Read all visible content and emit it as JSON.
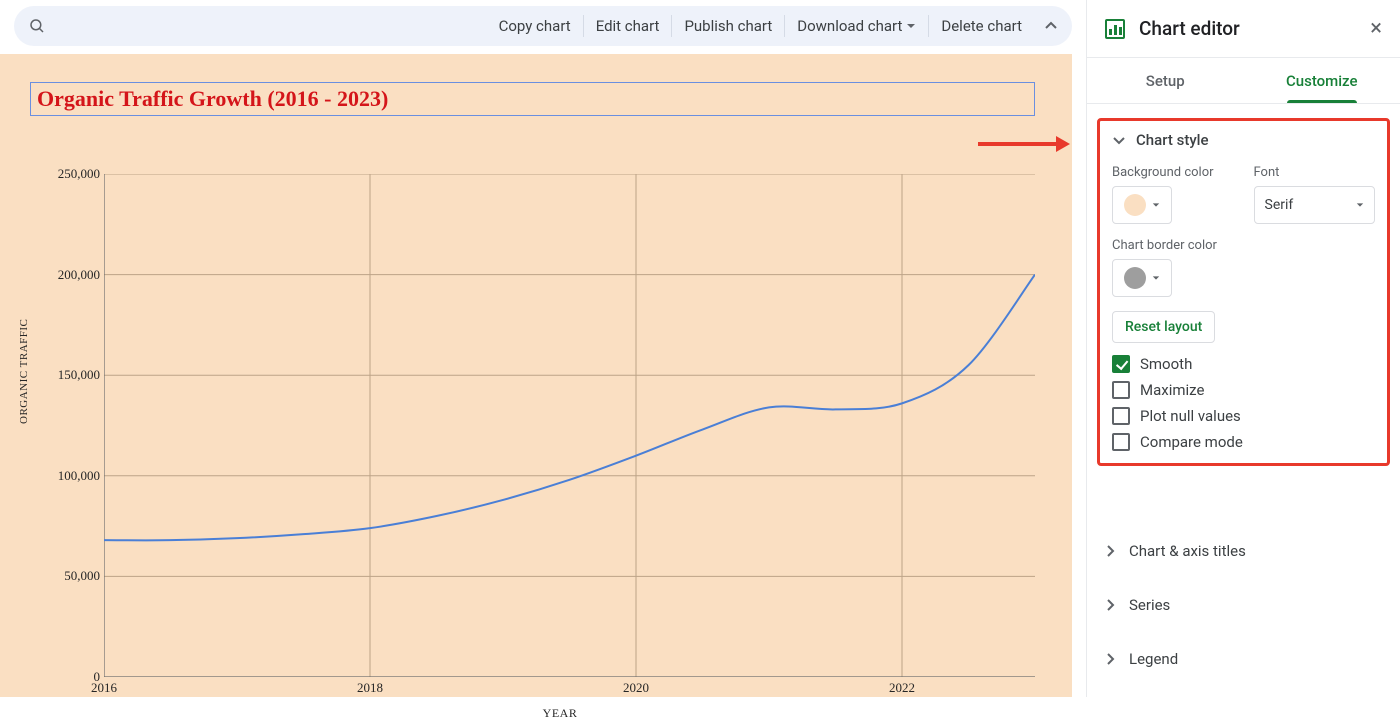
{
  "topbar": {
    "actions": {
      "copy": "Copy chart",
      "edit": "Edit chart",
      "publish": "Publish chart",
      "download": "Download chart",
      "delete": "Delete chart"
    }
  },
  "chart": {
    "title": "Organic Traffic Growth (2016 - 2023)",
    "title_color": "#d4151a",
    "title_border_color": "#6a8fe0",
    "background_color": "#fadfc2",
    "x_axis_label": "YEAR",
    "y_axis_label": "ORGANIC TRAFFIC",
    "type": "line",
    "smooth": true,
    "line_color": "#4a7fd6",
    "line_width": 2,
    "grid_color": "#bca387",
    "axis_color": "#6e6e6e",
    "font_family": "Serif",
    "xlim": [
      2016,
      2023
    ],
    "ylim": [
      0,
      250000
    ],
    "x_ticks": [
      2016,
      2018,
      2020,
      2022
    ],
    "y_ticks": [
      0,
      50000,
      100000,
      150000,
      200000,
      250000
    ],
    "y_tick_labels": [
      "0",
      "50,000",
      "100,000",
      "150,000",
      "200,000",
      "250,000"
    ],
    "series": {
      "x": [
        2016,
        2016.5,
        2017,
        2017.5,
        2018,
        2018.5,
        2019,
        2019.5,
        2020,
        2020.5,
        2021,
        2021.5,
        2022,
        2022.5,
        2023
      ],
      "y": [
        68000,
        68000,
        69000,
        71000,
        74000,
        80000,
        88000,
        98000,
        110000,
        123000,
        134000,
        133000,
        136000,
        155000,
        200000
      ]
    }
  },
  "annotation_arrow": {
    "color": "#e8392b"
  },
  "editor": {
    "title": "Chart editor",
    "tabs": {
      "setup": "Setup",
      "customize": "Customize"
    },
    "chart_style": {
      "title": "Chart style",
      "bg_label": "Background color",
      "bg_swatch": "#fadfc2",
      "font_label": "Font",
      "font_value": "Serif",
      "border_label": "Chart border color",
      "border_swatch": "#9e9e9e",
      "reset": "Reset layout",
      "checks": {
        "smooth": {
          "label": "Smooth",
          "checked": true
        },
        "maximize": {
          "label": "Maximize",
          "checked": false
        },
        "plot_null": {
          "label": "Plot null values",
          "checked": false
        },
        "compare": {
          "label": "Compare mode",
          "checked": false
        }
      }
    },
    "sections": {
      "axis_titles": "Chart & axis titles",
      "series": "Series",
      "legend": "Legend"
    }
  }
}
